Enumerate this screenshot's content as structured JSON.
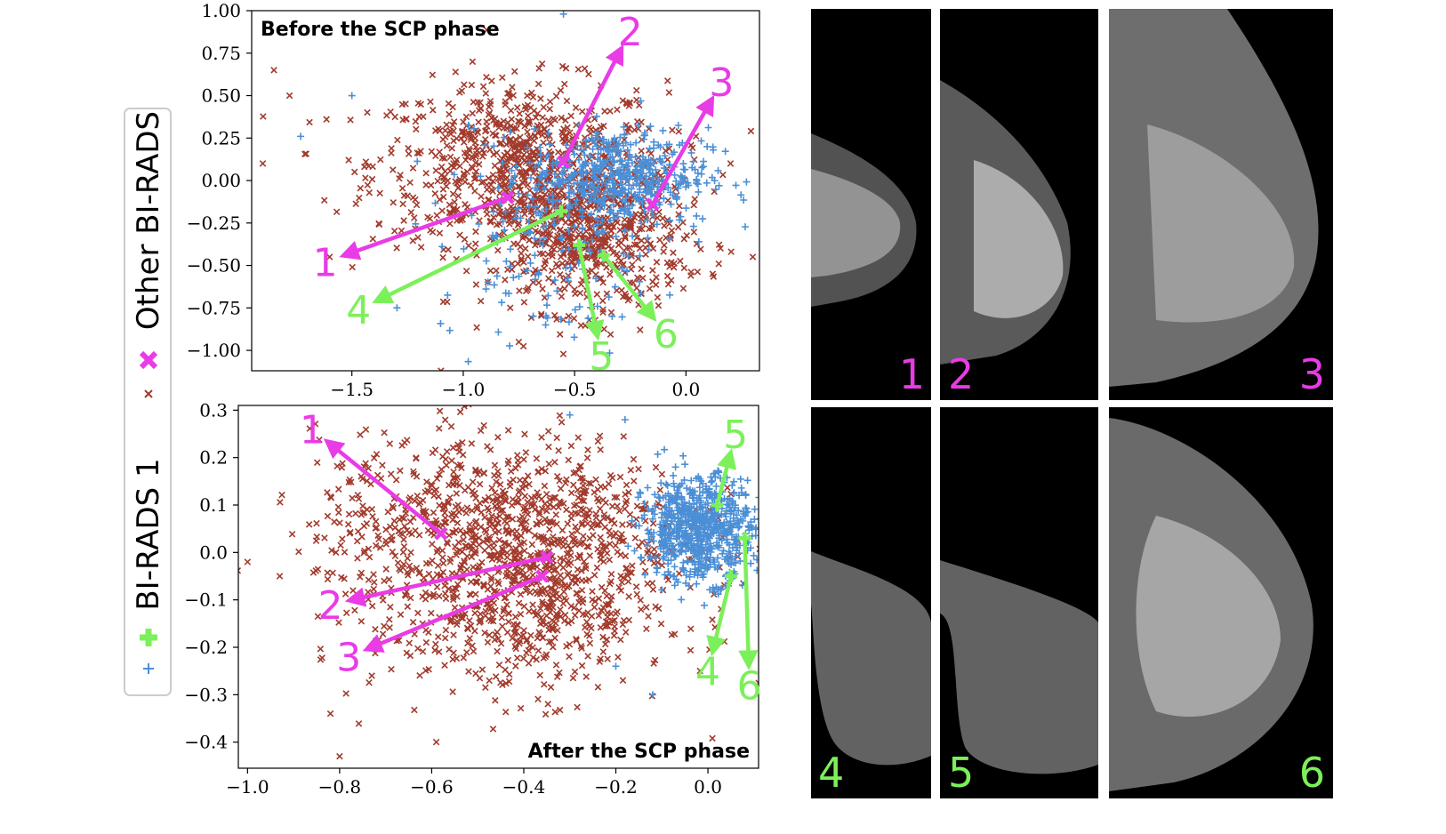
{
  "colors": {
    "other": "#a23b2d",
    "birads1": "#4b8fd6",
    "magenta": "#e93be6",
    "green": "#7cf05a",
    "photo_bg": "#000000"
  },
  "legend": {
    "title_other": "Other BI-RADS",
    "title_b1": "BI-RADS 1"
  },
  "photos": {
    "labels": [
      "1",
      "2",
      "3",
      "4",
      "5",
      "6"
    ]
  },
  "chart_data": [
    {
      "type": "scatter",
      "title": "Before the SCP phase",
      "xlim": [
        -1.95,
        0.33
      ],
      "ylim": [
        -1.12,
        1.0
      ],
      "xticks": [
        -1.5,
        -1.0,
        -0.5,
        0.0
      ],
      "xtick_labels": [
        "−1.5",
        "−1.0",
        "−0.5",
        "0.0"
      ],
      "yticks": [
        1.0,
        0.75,
        0.5,
        0.25,
        0.0,
        -0.25,
        -0.5,
        -0.75,
        -1.0
      ],
      "ytick_labels": [
        "1.00",
        "0.75",
        "0.50",
        "0.25",
        "0.00",
        "−0.25",
        "−0.50",
        "−0.75",
        "−1.00"
      ],
      "grid": false,
      "series": [
        {
          "name": "Other BI-RADS",
          "marker": "x",
          "count": 1400,
          "clusters": [
            {
              "cx": -0.75,
              "cy": 0.1,
              "sx": 0.33,
              "sy": 0.24,
              "w": 0.55
            },
            {
              "cx": -0.45,
              "cy": -0.33,
              "sx": 0.22,
              "sy": 0.22,
              "w": 0.45
            }
          ],
          "extra": [
            [
              -1.85,
              0.65
            ],
            [
              -1.9,
              0.1
            ],
            [
              0.3,
              -0.45
            ],
            [
              0.2,
              0.1
            ],
            [
              -1.1,
              -1.12
            ],
            [
              -1.6,
              -0.45
            ],
            [
              -1.78,
              0.5
            ],
            [
              0.12,
              -0.55
            ]
          ]
        },
        {
          "name": "BI-RADS 1",
          "marker": "+",
          "count": 650,
          "clusters": [
            {
              "cx": -0.3,
              "cy": 0.03,
              "sx": 0.2,
              "sy": 0.14,
              "w": 0.75
            },
            {
              "cx": -0.6,
              "cy": -0.35,
              "sx": 0.25,
              "sy": 0.3,
              "w": 0.25
            }
          ],
          "extra": [
            [
              -0.55,
              0.98
            ],
            [
              -1.73,
              0.26
            ],
            [
              -1.5,
              0.5
            ],
            [
              -0.63,
              -0.85
            ]
          ]
        }
      ],
      "highlights": [
        {
          "label": "1",
          "group": "Other BI-RADS",
          "x": -0.8,
          "y": -0.1,
          "text_x": -1.62,
          "text_y": -0.48
        },
        {
          "label": "2",
          "group": "Other BI-RADS",
          "x": -0.55,
          "y": 0.11,
          "text_x": -0.25,
          "text_y": 0.88
        },
        {
          "label": "3",
          "group": "Other BI-RADS",
          "x": -0.15,
          "y": -0.14,
          "text_x": 0.16,
          "text_y": 0.58
        },
        {
          "label": "4",
          "group": "BI-RADS 1",
          "x": -0.56,
          "y": -0.18,
          "text_x": -1.47,
          "text_y": -0.76
        },
        {
          "label": "5",
          "group": "BI-RADS 1",
          "x": -0.48,
          "y": -0.38,
          "text_x": -0.38,
          "text_y": -1.03
        },
        {
          "label": "6",
          "group": "BI-RADS 1",
          "x": -0.37,
          "y": -0.44,
          "text_x": -0.09,
          "text_y": -0.9
        }
      ]
    },
    {
      "type": "scatter",
      "title": "After the SCP phase",
      "xlim": [
        -1.02,
        0.11
      ],
      "ylim": [
        -0.455,
        0.31
      ],
      "xticks": [
        -1.0,
        -0.8,
        -0.6,
        -0.4,
        -0.2,
        0.0
      ],
      "xtick_labels": [
        "−1.0",
        "−0.8",
        "−0.6",
        "−0.4",
        "−0.2",
        "0.0"
      ],
      "yticks": [
        0.3,
        0.2,
        0.1,
        0.0,
        -0.1,
        -0.2,
        -0.3,
        -0.4
      ],
      "ytick_labels": [
        "0.3",
        "0.2",
        "0.1",
        "0.0",
        "−0.1",
        "−0.2",
        "−0.3",
        "−0.4"
      ],
      "grid": false,
      "series": [
        {
          "name": "Other BI-RADS",
          "marker": "x",
          "count": 1400,
          "clusters": [
            {
              "cx": -0.45,
              "cy": 0.05,
              "sx": 0.2,
              "sy": 0.1,
              "w": 0.65
            },
            {
              "cx": -0.4,
              "cy": -0.12,
              "sx": 0.16,
              "sy": 0.09,
              "w": 0.35
            }
          ],
          "extra": [
            [
              -1.0,
              -0.02
            ],
            [
              -0.93,
              -0.05
            ],
            [
              -0.8,
              -0.43
            ],
            [
              -0.59,
              -0.4
            ],
            [
              -0.82,
              -0.34
            ],
            [
              -0.73,
              -0.26
            ]
          ]
        },
        {
          "name": "BI-RADS 1",
          "marker": "+",
          "count": 700,
          "clusters": [
            {
              "cx": -0.02,
              "cy": 0.05,
              "sx": 0.06,
              "sy": 0.055,
              "w": 1.0
            }
          ],
          "extra": [
            [
              -0.3,
              0.29
            ],
            [
              -0.18,
              0.28
            ],
            [
              -0.2,
              -0.24
            ],
            [
              -0.12,
              -0.3
            ]
          ]
        }
      ],
      "highlights": [
        {
          "label": "1",
          "group": "Other BI-RADS",
          "x": -0.58,
          "y": 0.04,
          "text_x": -0.86,
          "text_y": 0.26
        },
        {
          "label": "2",
          "group": "Other BI-RADS",
          "x": -0.35,
          "y": -0.01,
          "text_x": -0.82,
          "text_y": -0.11
        },
        {
          "label": "3",
          "group": "Other BI-RADS",
          "x": -0.36,
          "y": -0.05,
          "text_x": -0.78,
          "text_y": -0.22
        },
        {
          "label": "4",
          "group": "BI-RADS 1",
          "x": 0.05,
          "y": -0.05,
          "text_x": 0.0,
          "text_y": -0.25
        },
        {
          "label": "5",
          "group": "BI-RADS 1",
          "x": 0.02,
          "y": 0.1,
          "text_x": 0.06,
          "text_y": 0.25
        },
        {
          "label": "6",
          "group": "BI-RADS 1",
          "x": 0.08,
          "y": 0.03,
          "text_x": 0.09,
          "text_y": -0.28
        }
      ]
    }
  ]
}
